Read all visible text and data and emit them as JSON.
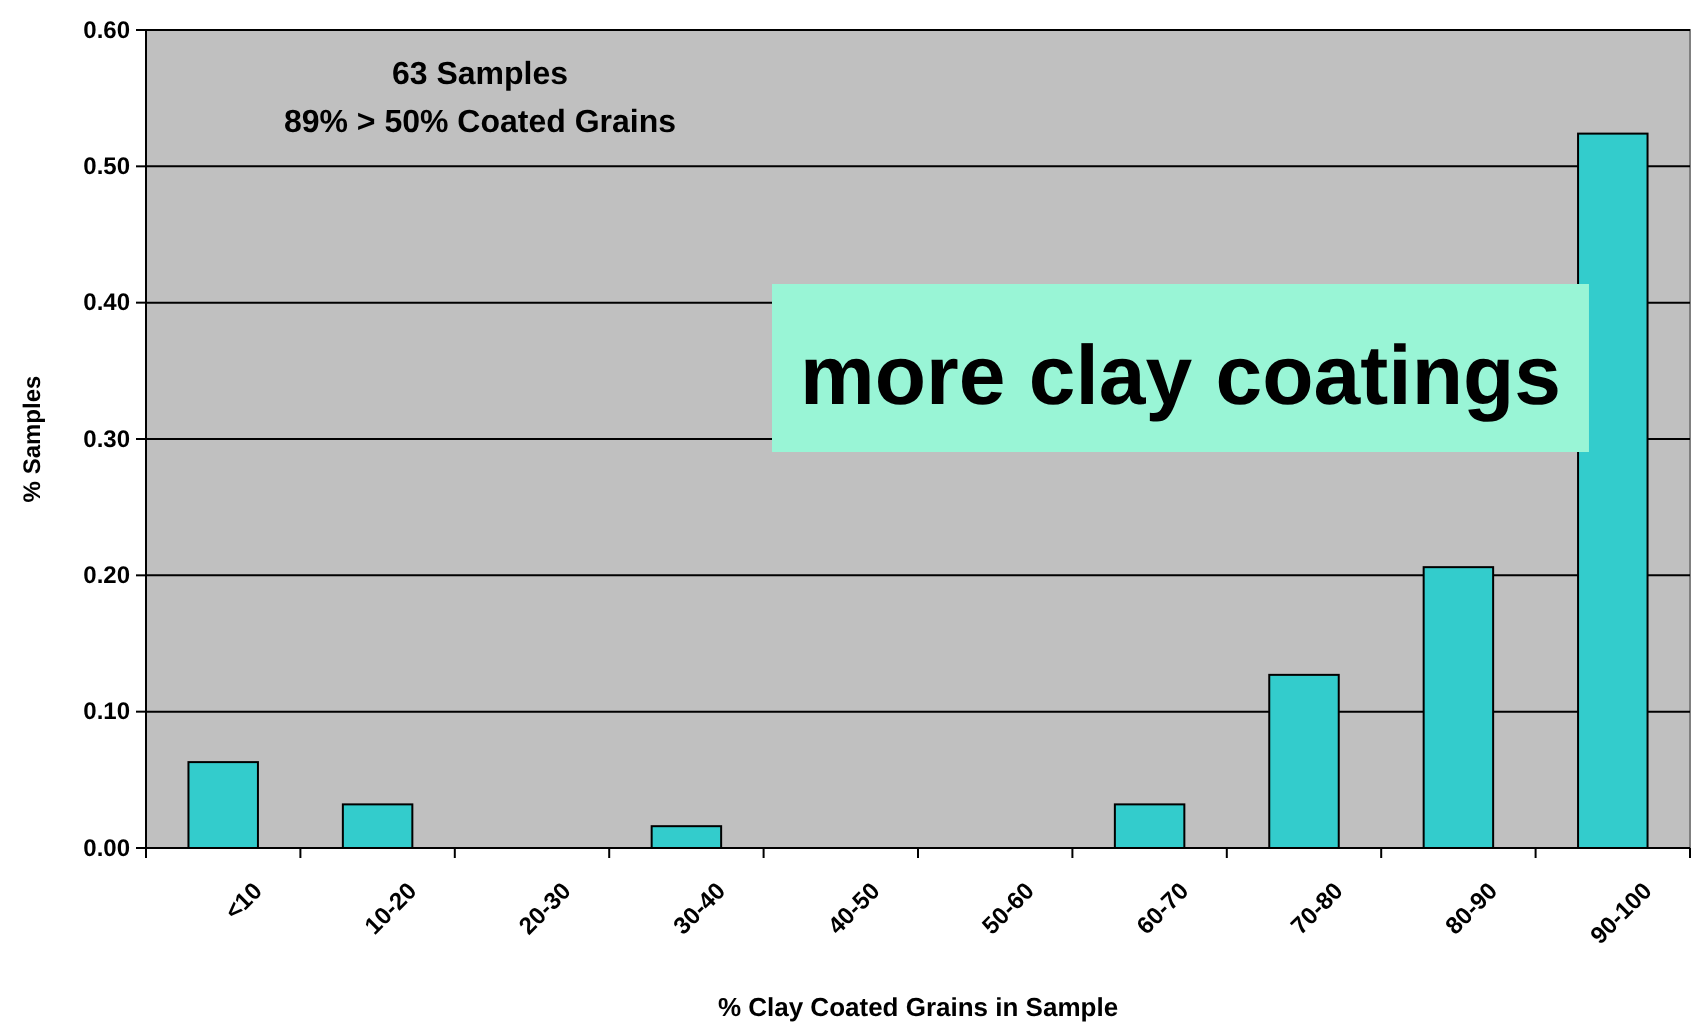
{
  "chart_data": {
    "type": "bar",
    "xlabel": "% Clay Coated Grains in Sample",
    "ylabel": "% Samples",
    "categories": [
      "<10",
      "10-20",
      "20-30",
      "30-40",
      "40-50",
      "50-60",
      "60-70",
      "70-80",
      "80-90",
      "90-100"
    ],
    "values": [
      0.063,
      0.032,
      0,
      0.016,
      0,
      0,
      0.032,
      0.127,
      0.206,
      0.524
    ],
    "color": "#33cccc",
    "ylim": [
      0,
      0.6
    ],
    "yticks": [
      {
        "value": 0,
        "label": "0.00"
      },
      {
        "value": 0.1,
        "label": "0.10"
      },
      {
        "value": 0.2,
        "label": "0.20"
      },
      {
        "value": 0.3,
        "label": "0.30"
      },
      {
        "value": 0.4,
        "label": "0.40"
      },
      {
        "value": 0.5,
        "label": "0.50"
      },
      {
        "value": 0.6,
        "label": "0.60"
      }
    ],
    "grid": "y",
    "annotations": [
      "63 Samples",
      "89% > 50% Coated Grains",
      "more clay coatings"
    ]
  }
}
